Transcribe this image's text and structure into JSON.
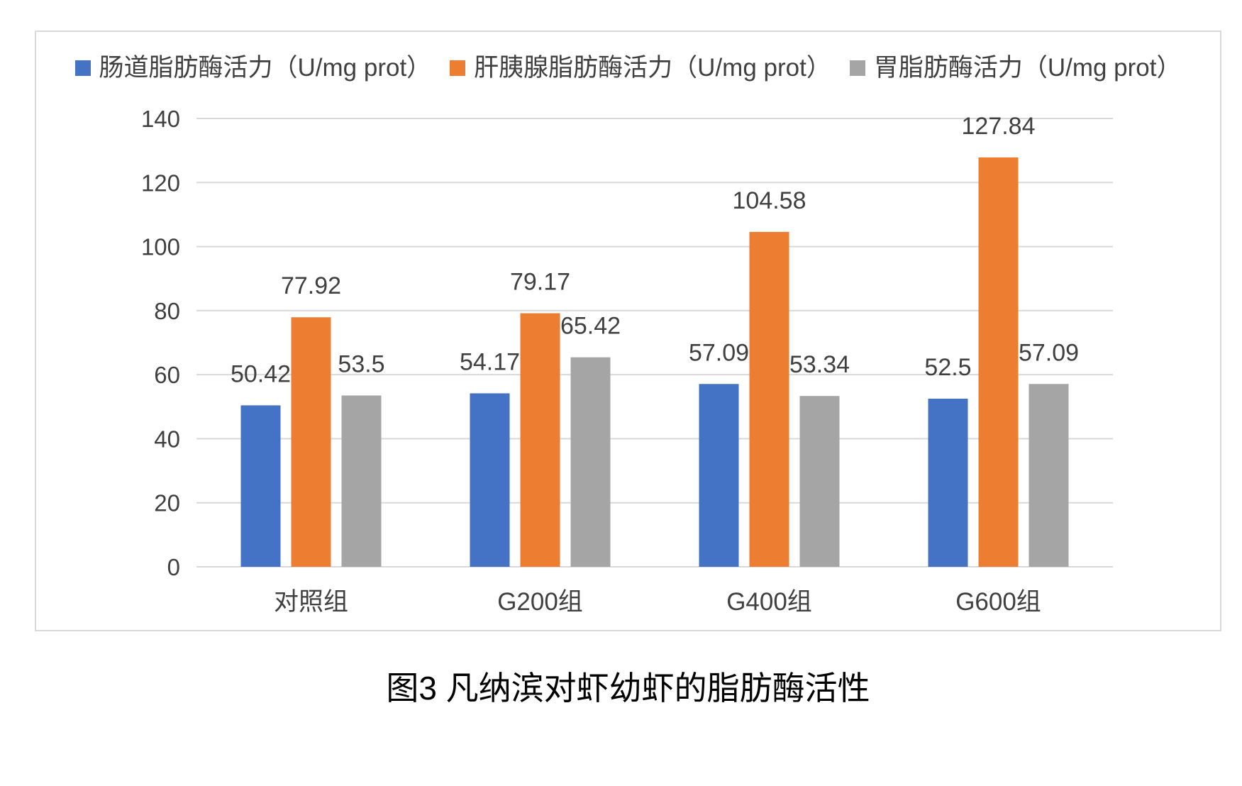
{
  "chart_data": {
    "type": "bar",
    "categories": [
      "对照组",
      "G200组",
      "G400组",
      "G600组"
    ],
    "series": [
      {
        "name": "肠道脂肪酶活力（U/mg prot）",
        "color": "#4472c4",
        "values": [
          50.42,
          54.17,
          57.09,
          52.5
        ]
      },
      {
        "name": "肝胰腺脂肪酶活力（U/mg prot）",
        "color": "#ed7d31",
        "values": [
          77.92,
          79.17,
          104.58,
          127.84
        ]
      },
      {
        "name": "胃脂肪酶活力（U/mg prot）",
        "color": "#a5a5a5",
        "values": [
          53.5,
          65.42,
          53.34,
          57.09
        ]
      }
    ],
    "ylim": [
      0,
      140
    ],
    "yticks": [
      0,
      20,
      40,
      60,
      80,
      100,
      120,
      140
    ],
    "data_labels": true,
    "grid": "horizontal",
    "legend": "top"
  },
  "figure": {
    "caption": "图3 凡纳滨对虾幼虾的脂肪酶活性"
  }
}
